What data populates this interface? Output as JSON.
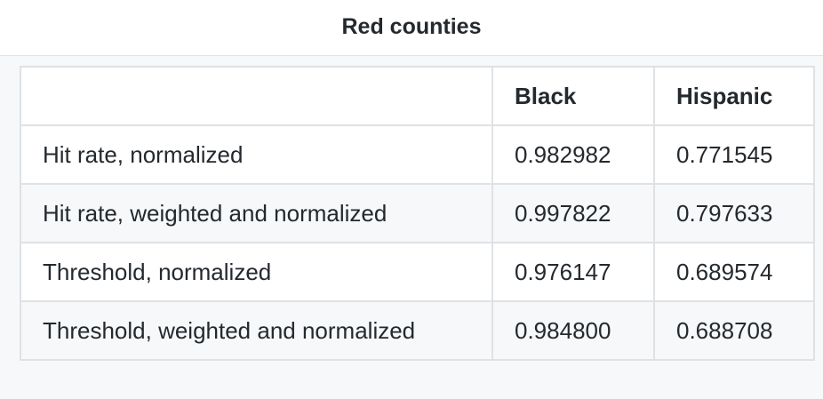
{
  "title": "Red counties",
  "table": {
    "headers": [
      "",
      "Black",
      "Hispanic"
    ],
    "rows": [
      [
        "Hit rate, normalized",
        "0.982982",
        "0.771545"
      ],
      [
        "Hit rate, weighted and normalized",
        "0.997822",
        "0.797633"
      ],
      [
        "Threshold, normalized",
        "0.976147",
        "0.689574"
      ],
      [
        "Threshold, weighted and normalized",
        "0.984800",
        "0.688708"
      ]
    ]
  }
}
